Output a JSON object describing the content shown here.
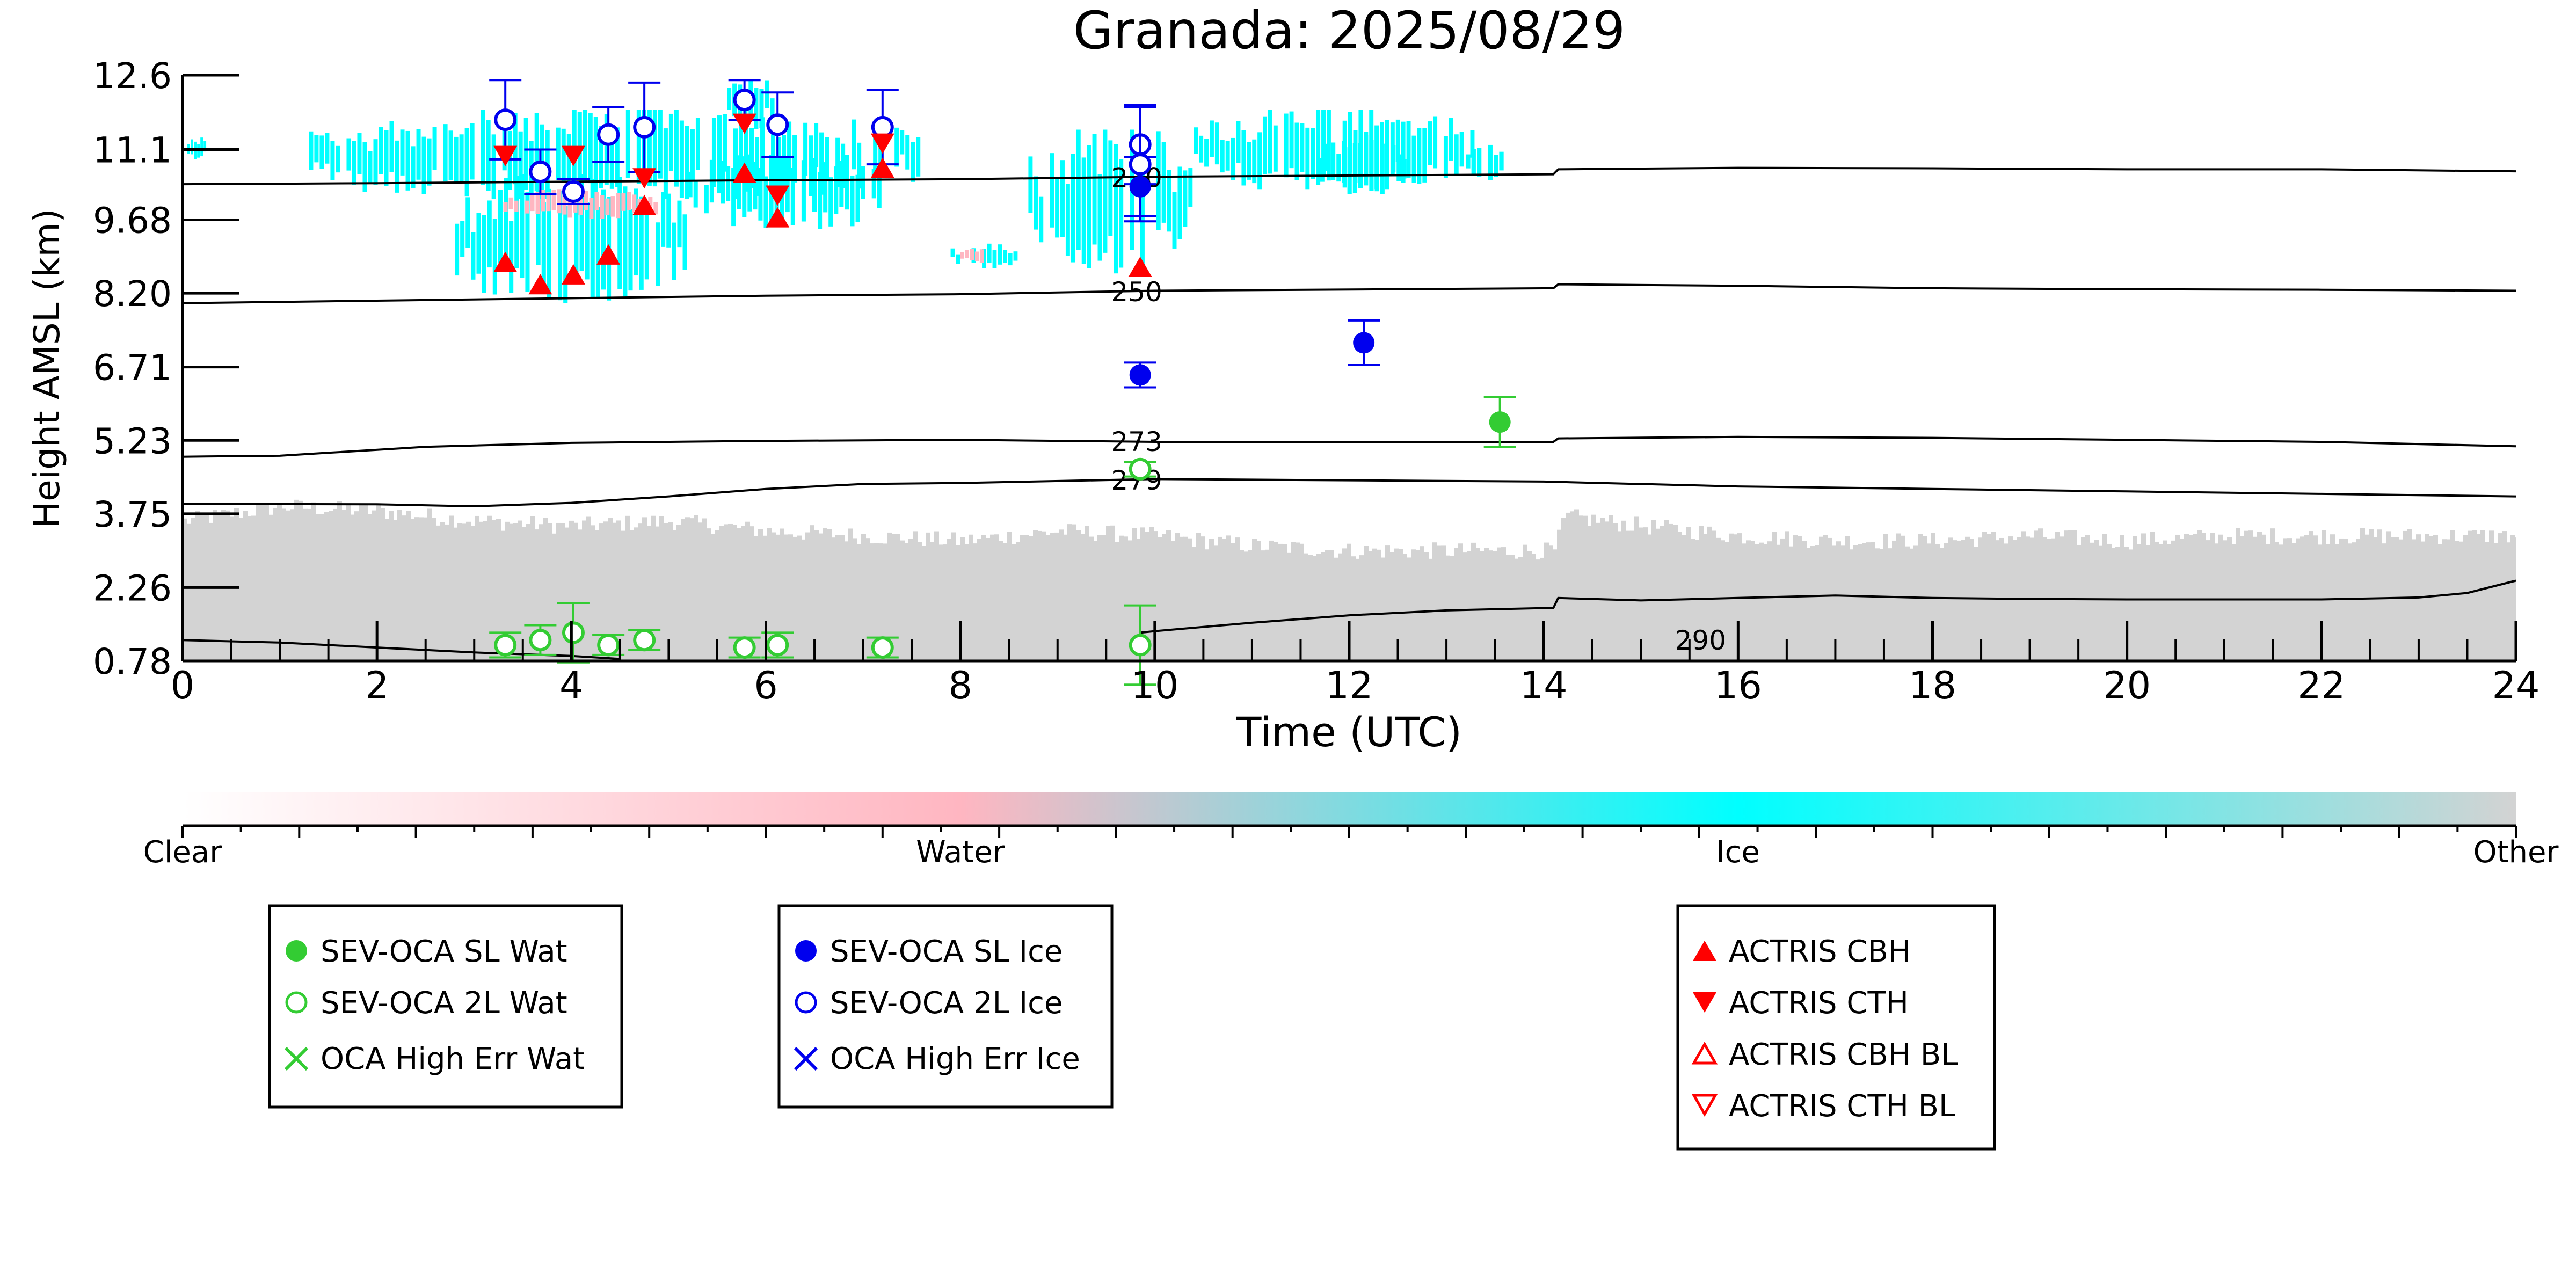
{
  "chart_data": {
    "type": "scatter",
    "title": "Granada: 2025/08/29",
    "xlabel": "Time (UTC)",
    "ylabel": "Height AMSL (km)",
    "xlim": [
      0,
      24
    ],
    "ylim": [
      0.78,
      12.6
    ],
    "x_ticks": [
      "0",
      "2",
      "4",
      "6",
      "8",
      "10",
      "12",
      "14",
      "16",
      "18",
      "20",
      "22",
      "24"
    ],
    "y_ticks": [
      "0.78",
      "2.26",
      "3.75",
      "5.23",
      "6.71",
      "8.20",
      "9.68",
      "11.1",
      "12.6"
    ],
    "y_tick_values": [
      0.78,
      2.26,
      3.75,
      5.23,
      6.71,
      8.2,
      9.68,
      11.1,
      12.6
    ],
    "grid": false,
    "colors": {
      "ice": "#00ffff",
      "water": "#ffb6c1",
      "other": "#d3d3d3",
      "sev_wat": "#33cc33",
      "sev_ice": "#0000ee",
      "actris": "#ff0000"
    },
    "background_mask": {
      "ice_regions": [
        {
          "x": [
            0.05,
            0.25
          ],
          "y": [
            10.9,
            11.35
          ]
        },
        {
          "x": [
            1.3,
            7.6
          ],
          "y": [
            10.1,
            11.9
          ]
        },
        {
          "x": [
            2.8,
            5.2
          ],
          "y": [
            8.0,
            10.6
          ]
        },
        {
          "x": [
            5.2,
            7.2
          ],
          "y": [
            9.5,
            11.0
          ]
        },
        {
          "x": [
            7.9,
            8.6
          ],
          "y": [
            8.7,
            9.2
          ]
        },
        {
          "x": [
            8.7,
            10.4
          ],
          "y": [
            8.6,
            11.5
          ]
        },
        {
          "x": [
            10.4,
            13.3
          ],
          "y": [
            10.3,
            11.9
          ]
        },
        {
          "x": [
            11.7,
            12.6
          ],
          "y": [
            10.2,
            11.4
          ]
        },
        {
          "x": [
            13.2,
            13.6
          ],
          "y": [
            10.4,
            11.2
          ]
        },
        {
          "x": [
            5.6,
            6.1
          ],
          "y": [
            11.5,
            12.6
          ]
        }
      ],
      "water_regions": [
        {
          "x": [
            3.3,
            4.9
          ],
          "y": [
            9.7,
            10.3
          ]
        },
        {
          "x": [
            8.0,
            8.3
          ],
          "y": [
            8.8,
            9.1
          ]
        }
      ],
      "other_profile": {
        "x": [
          0,
          1,
          2,
          3,
          4,
          5,
          6,
          7,
          8,
          9,
          10,
          11,
          12,
          13,
          14.1,
          14.2,
          15,
          16,
          17,
          18,
          19,
          20,
          21,
          22,
          23,
          24
        ],
        "top": [
          3.6,
          3.9,
          3.8,
          3.6,
          3.5,
          3.6,
          3.4,
          3.3,
          3.2,
          3.4,
          3.3,
          3.1,
          3.0,
          3.0,
          3.0,
          3.7,
          3.5,
          3.3,
          3.2,
          3.2,
          3.3,
          3.2,
          3.3,
          3.3,
          3.3,
          3.3
        ]
      }
    },
    "temperature_contours": [
      {
        "label": "230",
        "label_x": 9.55,
        "points": [
          [
            0,
            10.4
          ],
          [
            2,
            10.42
          ],
          [
            4,
            10.45
          ],
          [
            6,
            10.48
          ],
          [
            8,
            10.5
          ],
          [
            10,
            10.55
          ],
          [
            14.1,
            10.6
          ],
          [
            14.15,
            10.7
          ],
          [
            16,
            10.73
          ],
          [
            18,
            10.72
          ],
          [
            20,
            10.7
          ],
          [
            22,
            10.7
          ],
          [
            24,
            10.66
          ]
        ]
      },
      {
        "label": "250",
        "label_x": 9.55,
        "points": [
          [
            0,
            8.0
          ],
          [
            2,
            8.05
          ],
          [
            4,
            8.1
          ],
          [
            6,
            8.15
          ],
          [
            8,
            8.18
          ],
          [
            10,
            8.25
          ],
          [
            14.1,
            8.3
          ],
          [
            14.15,
            8.38
          ],
          [
            16,
            8.35
          ],
          [
            18,
            8.3
          ],
          [
            20,
            8.28
          ],
          [
            22,
            8.27
          ],
          [
            24,
            8.25
          ]
        ]
      },
      {
        "label": "273",
        "label_x": 9.55,
        "points": [
          [
            0,
            4.9
          ],
          [
            1,
            4.92
          ],
          [
            1.5,
            4.98
          ],
          [
            2.5,
            5.1
          ],
          [
            4,
            5.18
          ],
          [
            6,
            5.22
          ],
          [
            8,
            5.24
          ],
          [
            10,
            5.2
          ],
          [
            14.1,
            5.2
          ],
          [
            14.15,
            5.27
          ],
          [
            16,
            5.3
          ],
          [
            18,
            5.28
          ],
          [
            20,
            5.24
          ],
          [
            22,
            5.2
          ],
          [
            24,
            5.11
          ]
        ]
      },
      {
        "label": "279",
        "label_x": 9.55,
        "points": [
          [
            0,
            3.95
          ],
          [
            2,
            3.94
          ],
          [
            3,
            3.9
          ],
          [
            4,
            3.97
          ],
          [
            5,
            4.1
          ],
          [
            6,
            4.25
          ],
          [
            7,
            4.35
          ],
          [
            8,
            4.37
          ],
          [
            10,
            4.45
          ],
          [
            14,
            4.4
          ],
          [
            16,
            4.3
          ],
          [
            18,
            4.25
          ],
          [
            20,
            4.2
          ],
          [
            22,
            4.15
          ],
          [
            24,
            4.1
          ]
        ]
      },
      {
        "label": "290",
        "label_x": 15.35,
        "points": [
          [
            0,
            1.2
          ],
          [
            1,
            1.15
          ],
          [
            2,
            1.05
          ],
          [
            3,
            0.95
          ],
          [
            4,
            0.88
          ],
          [
            4.5,
            0.82
          ]
        ]
      },
      {
        "label": "",
        "label_x": null,
        "points": [
          [
            9.85,
            1.35
          ],
          [
            10,
            1.38
          ],
          [
            11,
            1.55
          ],
          [
            12,
            1.7
          ],
          [
            13,
            1.8
          ],
          [
            14.1,
            1.85
          ],
          [
            14.15,
            2.05
          ],
          [
            15,
            2.0
          ],
          [
            16,
            2.05
          ],
          [
            17,
            2.1
          ],
          [
            18,
            2.05
          ],
          [
            19,
            2.03
          ],
          [
            20,
            2.02
          ],
          [
            21,
            2.02
          ],
          [
            22,
            2.02
          ],
          [
            23,
            2.06
          ],
          [
            23.5,
            2.15
          ],
          [
            24,
            2.4
          ]
        ]
      }
    ],
    "series": [
      {
        "name": "SEV-OCA SL Wat",
        "marker": "circle-filled",
        "color": "#33cc33",
        "points": [
          {
            "x": 13.55,
            "y": 5.6,
            "err": 0.5
          }
        ]
      },
      {
        "name": "SEV-OCA 2L Wat",
        "marker": "circle-open",
        "color": "#33cc33",
        "points": [
          {
            "x": 3.32,
            "y": 1.1,
            "err": 0.25
          },
          {
            "x": 3.68,
            "y": 1.2,
            "err": 0.3
          },
          {
            "x": 4.02,
            "y": 1.35,
            "err": 0.6
          },
          {
            "x": 4.38,
            "y": 1.1,
            "err": 0.2
          },
          {
            "x": 4.75,
            "y": 1.2,
            "err": 0.2
          },
          {
            "x": 5.78,
            "y": 1.05,
            "err": 0.2
          },
          {
            "x": 6.12,
            "y": 1.1,
            "err": 0.25
          },
          {
            "x": 7.2,
            "y": 1.05,
            "err": 0.2
          },
          {
            "x": 9.85,
            "y": 1.1,
            "err": 0.8
          },
          {
            "x": 9.85,
            "y": 4.65,
            "err": 0.15
          }
        ]
      },
      {
        "name": "OCA High Err Wat",
        "marker": "x",
        "color": "#33cc33",
        "points": []
      },
      {
        "name": "SEV-OCA SL Ice",
        "marker": "circle-filled",
        "color": "#0000ee",
        "points": [
          {
            "x": 9.85,
            "y": 6.55,
            "err": 0.25
          },
          {
            "x": 12.15,
            "y": 7.2,
            "err": 0.45
          },
          {
            "x": 9.85,
            "y": 10.35,
            "err": 0.6
          }
        ]
      },
      {
        "name": "SEV-OCA 2L Ice",
        "marker": "circle-open",
        "color": "#0000ee",
        "points": [
          {
            "x": 3.32,
            "y": 11.7,
            "err": 0.8
          },
          {
            "x": 3.68,
            "y": 10.65,
            "err": 0.45
          },
          {
            "x": 4.02,
            "y": 10.25,
            "err": 0.25
          },
          {
            "x": 4.38,
            "y": 11.4,
            "err": 0.55
          },
          {
            "x": 4.75,
            "y": 11.55,
            "err": 0.9
          },
          {
            "x": 5.78,
            "y": 12.1,
            "err": 0.4
          },
          {
            "x": 6.12,
            "y": 11.6,
            "err": 0.65
          },
          {
            "x": 7.2,
            "y": 11.55,
            "err": 0.75
          },
          {
            "x": 9.85,
            "y": 11.2,
            "err": 0.8
          },
          {
            "x": 9.85,
            "y": 10.8,
            "err": 1.15
          }
        ]
      },
      {
        "name": "OCA High Err Ice",
        "marker": "x",
        "color": "#0000ee",
        "points": []
      },
      {
        "name": "ACTRIS CBH",
        "marker": "triangle-up-filled",
        "color": "#ff0000",
        "points": [
          {
            "x": 3.32,
            "y": 8.8
          },
          {
            "x": 3.68,
            "y": 8.35
          },
          {
            "x": 4.02,
            "y": 8.55
          },
          {
            "x": 4.38,
            "y": 8.95
          },
          {
            "x": 4.75,
            "y": 9.95
          },
          {
            "x": 5.78,
            "y": 10.6
          },
          {
            "x": 6.12,
            "y": 9.7
          },
          {
            "x": 7.2,
            "y": 10.7
          },
          {
            "x": 9.85,
            "y": 8.7
          }
        ]
      },
      {
        "name": "ACTRIS CTH",
        "marker": "triangle-down-filled",
        "color": "#ff0000",
        "points": [
          {
            "x": 3.32,
            "y": 11.0
          },
          {
            "x": 4.02,
            "y": 11.0
          },
          {
            "x": 4.75,
            "y": 10.55
          },
          {
            "x": 5.78,
            "y": 11.65
          },
          {
            "x": 6.12,
            "y": 10.2
          },
          {
            "x": 7.2,
            "y": 11.25
          }
        ]
      },
      {
        "name": "ACTRIS CBH BL",
        "marker": "triangle-up-open",
        "color": "#ff0000",
        "points": []
      },
      {
        "name": "ACTRIS CTH BL",
        "marker": "triangle-down-open",
        "color": "#ff0000",
        "points": []
      }
    ],
    "colorbar": {
      "labels": [
        "Clear",
        "Water",
        "Ice",
        "Other"
      ],
      "stops": [
        "#ffffff",
        "#ffb6c1",
        "#00ffff",
        "#d3d3d3"
      ]
    },
    "legends": [
      {
        "placement": "bottom-left",
        "entries": [
          "SEV-OCA SL Wat",
          "SEV-OCA 2L Wat",
          "OCA High Err Wat"
        ]
      },
      {
        "placement": "bottom-center-left",
        "entries": [
          "SEV-OCA SL Ice",
          "SEV-OCA 2L Ice",
          "OCA High Err Ice"
        ]
      },
      {
        "placement": "bottom-center-right",
        "entries": [
          "ACTRIS CBH",
          "ACTRIS CTH",
          "ACTRIS CBH BL",
          "ACTRIS CTH BL"
        ]
      }
    ]
  }
}
